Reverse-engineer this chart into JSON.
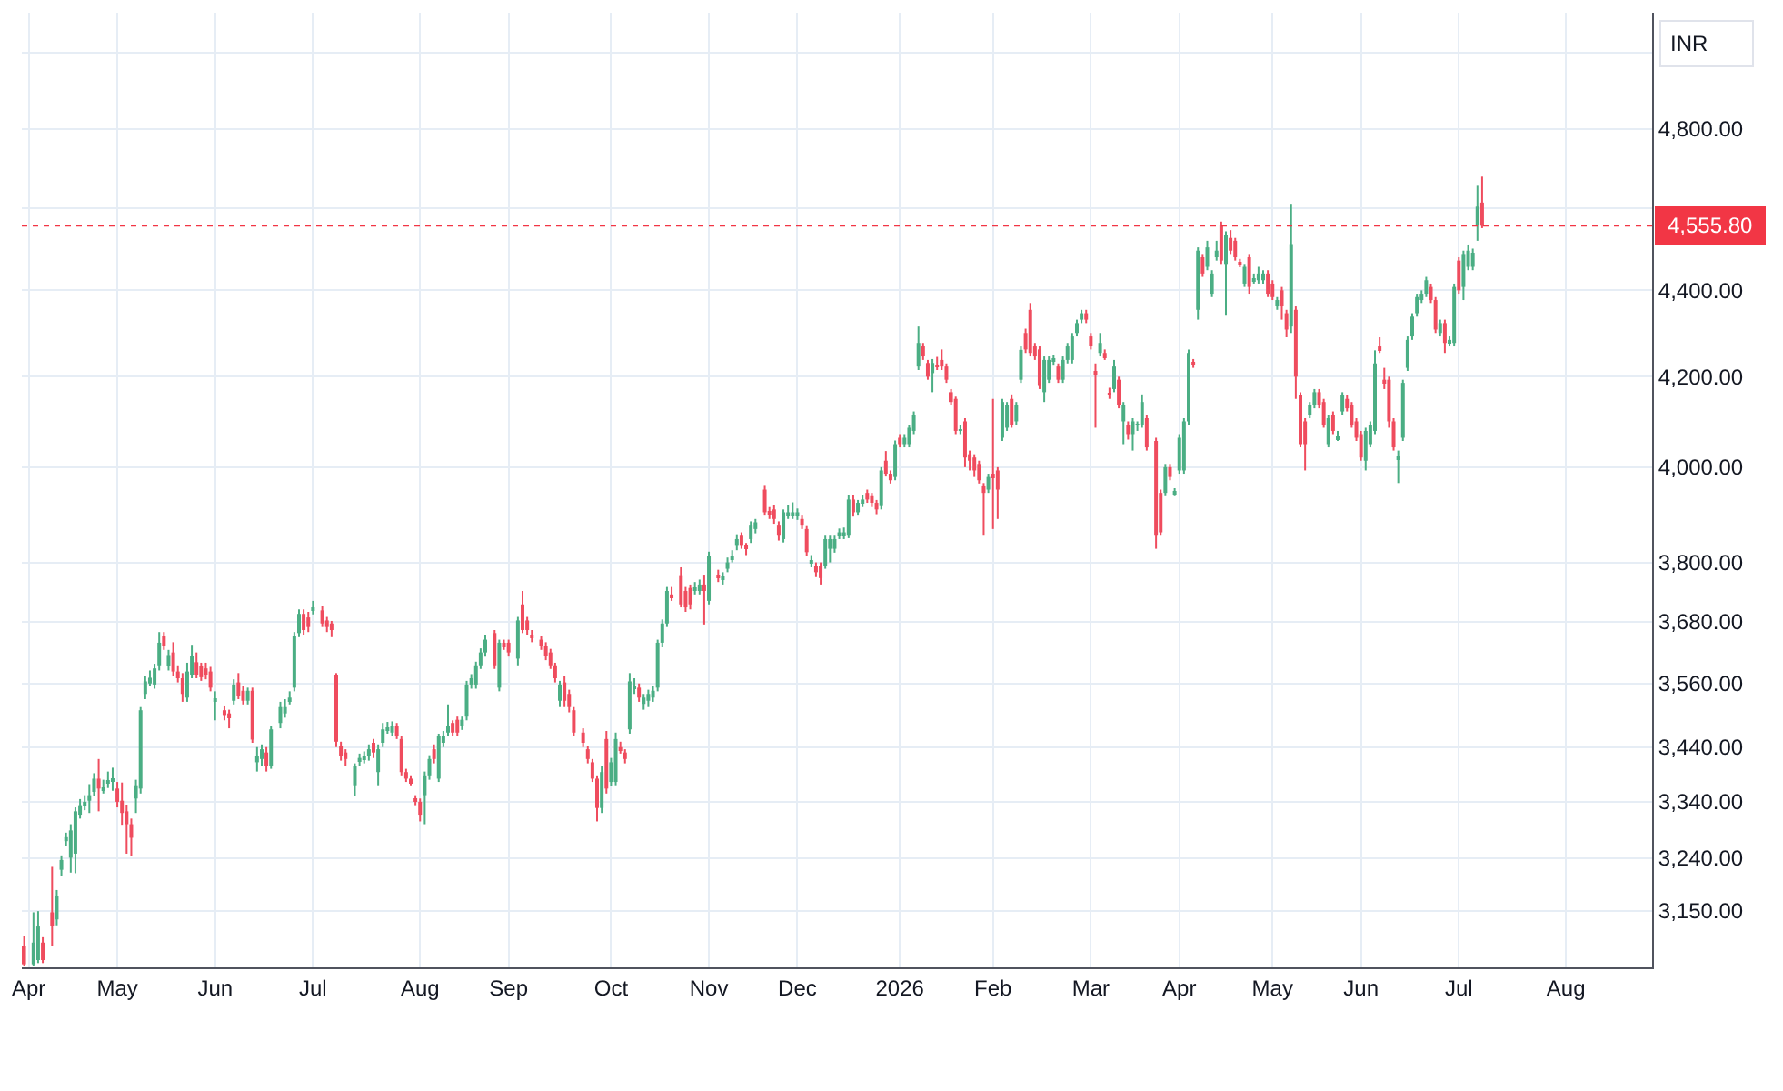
{
  "chart_data": {
    "type": "candlestick",
    "ylabel": "INR",
    "log": "y",
    "grid": true,
    "categories": [
      null,
      "Apr",
      null,
      null,
      null,
      null,
      null,
      null,
      null,
      null,
      null,
      null,
      null,
      null,
      null,
      null,
      null,
      null,
      null,
      null,
      "May",
      null,
      null,
      null,
      null,
      null,
      null,
      null,
      null,
      null,
      null,
      null,
      null,
      null,
      null,
      null,
      null,
      null,
      null,
      null,
      null,
      "Jun",
      null,
      null,
      null,
      null,
      null,
      null,
      null,
      null,
      null,
      null,
      null,
      null,
      null,
      null,
      null,
      null,
      null,
      null,
      null,
      null,
      "Jul",
      null,
      null,
      null,
      null,
      null,
      null,
      null,
      null,
      null,
      null,
      null,
      null,
      null,
      null,
      null,
      null,
      null,
      null,
      null,
      null,
      null,
      null,
      "Aug",
      null,
      null,
      null,
      null,
      null,
      null,
      null,
      null,
      null,
      null,
      null,
      null,
      null,
      null,
      null,
      null,
      null,
      null,
      "Sep",
      null,
      null,
      null,
      null,
      null,
      null,
      null,
      null,
      null,
      null,
      null,
      null,
      null,
      null,
      null,
      null,
      null,
      null,
      null,
      null,
      null,
      "Oct",
      null,
      null,
      null,
      null,
      null,
      null,
      null,
      null,
      null,
      null,
      null,
      null,
      null,
      null,
      null,
      null,
      null,
      null,
      null,
      null,
      "Nov",
      null,
      null,
      null,
      null,
      null,
      null,
      null,
      null,
      null,
      null,
      null,
      null,
      null,
      null,
      null,
      null,
      null,
      null,
      "Dec",
      null,
      null,
      null,
      null,
      null,
      null,
      null,
      null,
      null,
      null,
      null,
      null,
      null,
      null,
      null,
      null,
      null,
      null,
      null,
      null,
      null,
      "2026",
      null,
      null,
      null,
      null,
      null,
      null,
      null,
      null,
      null,
      null,
      null,
      null,
      null,
      null,
      null,
      null,
      null,
      null,
      null,
      "Feb",
      null,
      null,
      null,
      null,
      null,
      null,
      null,
      null,
      null,
      null,
      null,
      null,
      null,
      null,
      null,
      null,
      null,
      null,
      null,
      null,
      "Mar",
      null,
      null,
      null,
      null,
      null,
      null,
      null,
      null,
      null,
      null,
      null,
      null,
      null,
      null,
      null,
      null,
      null,
      null,
      "Apr",
      null,
      null,
      null,
      null,
      null,
      null,
      null,
      null,
      null,
      null,
      null,
      null,
      null,
      null,
      null,
      null,
      null,
      null,
      null,
      "May",
      null,
      null,
      null,
      null,
      null,
      null,
      null,
      null,
      null,
      null,
      null,
      null,
      null,
      null,
      null,
      null,
      null,
      null,
      "Jun",
      null,
      null,
      null,
      null,
      null,
      null,
      null,
      null,
      null,
      null,
      null,
      null,
      null,
      null,
      null,
      null,
      null,
      null,
      null,
      null,
      "Jul",
      null,
      null,
      null,
      null,
      null,
      null,
      null,
      null,
      null,
      null,
      null,
      null,
      null,
      null,
      null,
      null,
      null,
      null,
      null,
      null,
      null,
      null,
      "Aug",
      null,
      null,
      null,
      null,
      null,
      null,
      null,
      null,
      null,
      null,
      null,
      null,
      null,
      null,
      null,
      null,
      null,
      null
    ],
    "ylim": [
      3055,
      5110
    ],
    "yticks": [
      {
        "value": 3150,
        "label": "3,150.00"
      },
      {
        "value": 3240,
        "label": "3,240.00"
      },
      {
        "value": 3340,
        "label": "3,340.00"
      },
      {
        "value": 3440,
        "label": "3,440.00"
      },
      {
        "value": 3560,
        "label": "3,560.00"
      },
      {
        "value": 3680,
        "label": "3,680.00"
      },
      {
        "value": 3800,
        "label": "3,800.00"
      },
      {
        "value": 4000,
        "label": "4,000.00"
      },
      {
        "value": 4200,
        "label": "4,200.00"
      },
      {
        "value": 4400,
        "label": "4,400.00"
      },
      {
        "value": 4600,
        "label": null
      },
      {
        "value": 4800,
        "label": "4,800.00"
      },
      {
        "value": 5000,
        "label": null
      }
    ],
    "ref_lines": [
      {
        "axis": "y",
        "value": 4555.8,
        "label": "4,555.80",
        "color": "#f23645",
        "line_style": "dotted"
      }
    ],
    "ohlc": [
      [
        3090,
        3107,
        3057,
        3060
      ],
      null,
      [
        3060,
        3147,
        3057,
        3096
      ],
      [
        3067,
        3149,
        3062,
        3123
      ],
      [
        3096,
        3105,
        3062,
        3067
      ],
      null,
      [
        3147,
        3225,
        3090,
        3124
      ],
      [
        3135,
        3185,
        3125,
        3175
      ],
      [
        3220,
        3245,
        3210,
        3237
      ],
      [
        3270,
        3285,
        3262,
        3277
      ],
      [
        3241,
        3300,
        3215,
        3289
      ],
      [
        3248,
        3330,
        3214,
        3323
      ],
      [
        3317,
        3345,
        3310,
        3334
      ],
      [
        3334,
        3352,
        3325,
        3340
      ],
      [
        3342,
        3372,
        3320,
        3352
      ],
      [
        3358,
        3392,
        3350,
        3382
      ],
      [
        3382,
        3418,
        3323,
        3364
      ],
      [
        3362,
        3380,
        3355,
        3366
      ],
      [
        3374,
        3395,
        3365,
        3378
      ],
      [
        3378,
        3402,
        3360,
        3382
      ],
      [
        3364,
        3376,
        3330,
        3340
      ],
      [
        3342,
        3375,
        3299,
        3320
      ],
      [
        3323,
        3335,
        3248,
        3300
      ],
      [
        3300,
        3310,
        3244,
        3276
      ],
      [
        3346,
        3380,
        3320,
        3370
      ],
      [
        3364,
        3515,
        3355,
        3509
      ],
      [
        3540,
        3575,
        3530,
        3564
      ],
      [
        3560,
        3585,
        3555,
        3571
      ],
      [
        3558,
        3598,
        3550,
        3589
      ],
      [
        3595,
        3660,
        3585,
        3639
      ],
      [
        3652,
        3660,
        3625,
        3633
      ],
      [
        3593,
        3625,
        3585,
        3615
      ],
      [
        3620,
        3640,
        3575,
        3583
      ],
      [
        3583,
        3595,
        3562,
        3570
      ],
      [
        3570,
        3580,
        3525,
        3540
      ],
      [
        3533,
        3600,
        3525,
        3583
      ],
      [
        3577,
        3635,
        3570,
        3614
      ],
      [
        3601,
        3620,
        3570,
        3577
      ],
      [
        3593,
        3600,
        3565,
        3572
      ],
      [
        3589,
        3600,
        3568,
        3577
      ],
      [
        3583,
        3592,
        3545,
        3552
      ],
      [
        3525,
        3545,
        3490,
        3529
      ],
      null,
      [
        3509,
        3518,
        3490,
        3500
      ],
      [
        3503,
        3510,
        3475,
        3497
      ],
      [
        3527,
        3568,
        3520,
        3558
      ],
      [
        3562,
        3580,
        3530,
        3537
      ],
      [
        3546,
        3555,
        3520,
        3527
      ],
      [
        3527,
        3552,
        3520,
        3546
      ],
      [
        3546,
        3552,
        3448,
        3454
      ],
      [
        3412,
        3440,
        3395,
        3424
      ],
      [
        3418,
        3445,
        3405,
        3436
      ],
      [
        3430,
        3440,
        3395,
        3406
      ],
      [
        3406,
        3480,
        3400,
        3473
      ],
      null,
      [
        3485,
        3525,
        3475,
        3515
      ],
      [
        3503,
        3530,
        3495,
        3515
      ],
      [
        3527,
        3545,
        3520,
        3533
      ],
      [
        3552,
        3660,
        3545,
        3652
      ],
      [
        3658,
        3705,
        3650,
        3696
      ],
      [
        3696,
        3705,
        3655,
        3664
      ],
      [
        3689,
        3700,
        3660,
        3670
      ],
      [
        3703,
        3722,
        3695,
        3709
      ],
      null,
      [
        3703,
        3712,
        3670,
        3677
      ],
      [
        3683,
        3690,
        3660,
        3670
      ],
      [
        3677,
        3682,
        3650,
        3664
      ],
      [
        3577,
        3580,
        3440,
        3450
      ],
      [
        3442,
        3450,
        3415,
        3424
      ],
      [
        3430,
        3436,
        3405,
        3418
      ],
      null,
      [
        3370,
        3410,
        3350,
        3406
      ],
      [
        3416,
        3428,
        3405,
        3420
      ],
      [
        3418,
        3432,
        3410,
        3424
      ],
      [
        3424,
        3445,
        3415,
        3436
      ],
      [
        3448,
        3455,
        3420,
        3430
      ],
      [
        3394,
        3445,
        3370,
        3436
      ],
      [
        3448,
        3485,
        3440,
        3473
      ],
      [
        3473,
        3487,
        3465,
        3476
      ],
      [
        3467,
        3488,
        3460,
        3479
      ],
      [
        3479,
        3485,
        3455,
        3461
      ],
      [
        3455,
        3460,
        3388,
        3394
      ],
      [
        3394,
        3400,
        3376,
        3382
      ],
      [
        3382,
        3388,
        3370,
        3376
      ],
      [
        3346,
        3352,
        3334,
        3340
      ],
      [
        3340,
        3346,
        3305,
        3317
      ],
      [
        3352,
        3395,
        3300,
        3388
      ],
      [
        3388,
        3425,
        3380,
        3418
      ],
      [
        3436,
        3445,
        3410,
        3418
      ],
      [
        3382,
        3465,
        3376,
        3461
      ],
      [
        3448,
        3470,
        3440,
        3461
      ],
      [
        3467,
        3520,
        3460,
        3479
      ],
      [
        3485,
        3490,
        3460,
        3467
      ],
      [
        3491,
        3497,
        3460,
        3467
      ],
      [
        3479,
        3497,
        3472,
        3491
      ],
      [
        3497,
        3565,
        3490,
        3558
      ],
      [
        3558,
        3578,
        3550,
        3570
      ],
      [
        3558,
        3602,
        3550,
        3595
      ],
      [
        3595,
        3628,
        3588,
        3620
      ],
      [
        3620,
        3655,
        3612,
        3645
      ],
      null,
      [
        3658,
        3664,
        3588,
        3595
      ],
      [
        3552,
        3645,
        3545,
        3639
      ],
      [
        3639,
        3645,
        3625,
        3633
      ],
      [
        3639,
        3645,
        3612,
        3620
      ],
      null,
      [
        3608,
        3690,
        3595,
        3683
      ],
      [
        3715,
        3742,
        3658,
        3664
      ],
      [
        3683,
        3690,
        3655,
        3664
      ],
      [
        3652,
        3664,
        3640,
        3649
      ],
      null,
      [
        3645,
        3652,
        3625,
        3633
      ],
      [
        3633,
        3640,
        3605,
        3614
      ],
      [
        3620,
        3627,
        3588,
        3595
      ],
      [
        3595,
        3600,
        3562,
        3570
      ],
      [
        3527,
        3565,
        3515,
        3558
      ],
      [
        3562,
        3575,
        3515,
        3527
      ],
      [
        3540,
        3548,
        3505,
        3515
      ],
      [
        3509,
        3515,
        3460,
        3467
      ],
      null,
      [
        3467,
        3475,
        3440,
        3448
      ],
      [
        3436,
        3442,
        3410,
        3418
      ],
      [
        3412,
        3418,
        3376,
        3382
      ],
      [
        3382,
        3388,
        3305,
        3329
      ],
      [
        3329,
        3405,
        3320,
        3394
      ],
      [
        3455,
        3470,
        3355,
        3364
      ],
      [
        3376,
        3420,
        3368,
        3412
      ],
      [
        3376,
        3467,
        3370,
        3455
      ],
      [
        3440,
        3450,
        3428,
        3436
      ],
      [
        3430,
        3436,
        3410,
        3418
      ],
      [
        3473,
        3580,
        3465,
        3564
      ],
      [
        3552,
        3570,
        3540,
        3555
      ],
      [
        3552,
        3560,
        3525,
        3533
      ],
      [
        3521,
        3540,
        3510,
        3533
      ],
      [
        3527,
        3548,
        3515,
        3540
      ],
      [
        3533,
        3555,
        3525,
        3546
      ],
      [
        3552,
        3645,
        3545,
        3639
      ],
      [
        3639,
        3685,
        3630,
        3677
      ],
      [
        3677,
        3750,
        3670,
        3742
      ],
      [
        3735,
        3750,
        3722,
        3729
      ],
      null,
      [
        3774,
        3790,
        3709,
        3715
      ],
      [
        3742,
        3750,
        3700,
        3709
      ],
      [
        3748,
        3755,
        3705,
        3715
      ],
      [
        3742,
        3760,
        3735,
        3748
      ],
      [
        3742,
        3765,
        3735,
        3755
      ],
      [
        3755,
        3775,
        3675,
        3742
      ],
      [
        3722,
        3822,
        3715,
        3814
      ],
      null,
      [
        3774,
        3785,
        3760,
        3768
      ],
      [
        3766,
        3780,
        3755,
        3769
      ],
      [
        3787,
        3810,
        3780,
        3800
      ],
      [
        3807,
        3825,
        3800,
        3814
      ],
      [
        3834,
        3858,
        3825,
        3848
      ],
      [
        3855,
        3862,
        3828,
        3834
      ],
      [
        3834,
        3840,
        3815,
        3828
      ],
      [
        3848,
        3885,
        3840,
        3876
      ],
      [
        3869,
        3890,
        3860,
        3883
      ],
      null,
      [
        3952,
        3960,
        3897,
        3904
      ],
      [
        3904,
        3915,
        3890,
        3901
      ],
      [
        3910,
        3920,
        3880,
        3890
      ],
      [
        3876,
        3885,
        3845,
        3855
      ],
      [
        3848,
        3910,
        3841,
        3904
      ],
      [
        3897,
        3920,
        3890,
        3904
      ],
      [
        3897,
        3925,
        3890,
        3904
      ],
      [
        3897,
        3912,
        3888,
        3904
      ],
      [
        3890,
        3897,
        3869,
        3876
      ],
      [
        3869,
        3875,
        3814,
        3821
      ],
      [
        3798,
        3815,
        3790,
        3802
      ],
      [
        3793,
        3800,
        3770,
        3780
      ],
      [
        3793,
        3800,
        3755,
        3768
      ],
      [
        3793,
        3855,
        3787,
        3848
      ],
      [
        3828,
        3855,
        3800,
        3848
      ],
      [
        3828,
        3855,
        3820,
        3848
      ],
      [
        3855,
        3870,
        3848,
        3862
      ],
      [
        3855,
        3872,
        3848,
        3862
      ],
      [
        3855,
        3940,
        3850,
        3931
      ],
      [
        3931,
        3940,
        3895,
        3904
      ],
      [
        3904,
        3930,
        3897,
        3924
      ],
      [
        3924,
        3940,
        3915,
        3931
      ],
      [
        3945,
        3952,
        3924,
        3931
      ],
      [
        3938,
        3945,
        3915,
        3924
      ],
      [
        3924,
        3930,
        3900,
        3910
      ],
      [
        3917,
        4000,
        3910,
        3993
      ],
      [
        4014,
        4035,
        3980,
        3986
      ],
      [
        3986,
        3993,
        3965,
        3972
      ],
      [
        3979,
        4058,
        3972,
        4050
      ],
      [
        4064,
        4072,
        4043,
        4050
      ],
      [
        4050,
        4072,
        4043,
        4064
      ],
      [
        4050,
        4093,
        4043,
        4086
      ],
      [
        4079,
        4122,
        4072,
        4115
      ],
      [
        4223,
        4315,
        4215,
        4277
      ],
      [
        4269,
        4277,
        4238,
        4246
      ],
      [
        4231,
        4238,
        4193,
        4200
      ],
      [
        4208,
        4240,
        4165,
        4231
      ],
      [
        4225,
        4245,
        4215,
        4223
      ],
      [
        4238,
        4262,
        4215,
        4223
      ],
      [
        4223,
        4230,
        4186,
        4193
      ],
      [
        4165,
        4172,
        4136,
        4143
      ],
      [
        4150,
        4155,
        4072,
        4079
      ],
      [
        4079,
        4093,
        4072,
        4081
      ],
      [
        4100,
        4107,
        4000,
        4021
      ],
      [
        4028,
        4036,
        3993,
        4014
      ],
      [
        4021,
        4028,
        3979,
        3993
      ],
      [
        4007,
        4014,
        3965,
        3972
      ],
      [
        3959,
        3966,
        3855,
        3945
      ],
      [
        3952,
        3986,
        3945,
        3979
      ],
      [
        3986,
        4150,
        3869,
        3979
      ],
      [
        3993,
        4000,
        3890,
        3952
      ],
      [
        4064,
        4150,
        4057,
        4143
      ],
      [
        4086,
        4143,
        4079,
        4136
      ],
      [
        4150,
        4160,
        4086,
        4093
      ],
      [
        4100,
        4143,
        4093,
        4136
      ],
      [
        4193,
        4269,
        4186,
        4261
      ],
      [
        4300,
        4310,
        4254,
        4262
      ],
      [
        4354,
        4370,
        4246,
        4254
      ],
      [
        4269,
        4277,
        4238,
        4246
      ],
      [
        4262,
        4269,
        4172,
        4179
      ],
      [
        4165,
        4246,
        4143,
        4238
      ],
      [
        4193,
        4246,
        4186,
        4238
      ],
      [
        4236,
        4250,
        4225,
        4238
      ],
      [
        4223,
        4230,
        4186,
        4193
      ],
      [
        4193,
        4246,
        4186,
        4238
      ],
      [
        4238,
        4277,
        4230,
        4269
      ],
      [
        4238,
        4300,
        4230,
        4292
      ],
      [
        4300,
        4331,
        4292,
        4323
      ],
      [
        4331,
        4354,
        4323,
        4346
      ],
      [
        4346,
        4354,
        4323,
        4331
      ],
      [
        4292,
        4300,
        4262,
        4269
      ],
      [
        4210,
        4230,
        4086,
        4206
      ],
      [
        4254,
        4300,
        4246,
        4277
      ],
      [
        4254,
        4262,
        4238,
        4246
      ],
      [
        4163,
        4175,
        4150,
        4160
      ],
      [
        4172,
        4238,
        4165,
        4223
      ],
      [
        4193,
        4200,
        4129,
        4136
      ],
      [
        4100,
        4143,
        4050,
        4136
      ],
      [
        4093,
        4100,
        4060,
        4072
      ],
      [
        4072,
        4107,
        4036,
        4100
      ],
      [
        4091,
        4100,
        4079,
        4093
      ],
      [
        4093,
        4160,
        4086,
        4143
      ],
      [
        4107,
        4115,
        4036,
        4043
      ],
      null,
      [
        4057,
        4064,
        3828,
        3855
      ],
      [
        3945,
        3952,
        3855,
        3862
      ],
      [
        3945,
        4007,
        3938,
        4000
      ],
      [
        4000,
        4007,
        3972,
        3979
      ],
      [
        3945,
        3955,
        3938,
        3948
      ],
      [
        3993,
        4072,
        3986,
        4064
      ],
      [
        3993,
        4107,
        3986,
        4100
      ],
      [
        4100,
        4262,
        4093,
        4254
      ],
      [
        4232,
        4240,
        4220,
        4228
      ],
      [
        4354,
        4503,
        4331,
        4495
      ],
      [
        4479,
        4487,
        4432,
        4440
      ],
      [
        4456,
        4519,
        4448,
        4503
      ],
      [
        4392,
        4448,
        4384,
        4440
      ],
      [
        4479,
        4519,
        4471,
        4495
      ],
      [
        4558,
        4566,
        4463,
        4471
      ],
      [
        4463,
        4542,
        4340,
        4534
      ],
      [
        4526,
        4545,
        4487,
        4495
      ],
      [
        4519,
        4526,
        4471,
        4479
      ],
      [
        4465,
        4475,
        4455,
        4462
      ],
      [
        4416,
        4463,
        4408,
        4456
      ],
      [
        4479,
        4487,
        4392,
        4408
      ],
      [
        4422,
        4440,
        4416,
        4425
      ],
      [
        4424,
        4456,
        4416,
        4440
      ],
      [
        4424,
        4448,
        4416,
        4440
      ],
      [
        4440,
        4448,
        4384,
        4392
      ],
      [
        4416,
        4424,
        4377,
        4384
      ],
      [
        4362,
        4384,
        4354,
        4377
      ],
      [
        4400,
        4408,
        4331,
        4362
      ],
      [
        4346,
        4354,
        4290,
        4308
      ],
      [
        4315,
        4610,
        4300,
        4511
      ],
      [
        4354,
        4362,
        4150,
        4200
      ],
      [
        4158,
        4165,
        4043,
        4050
      ],
      [
        4100,
        4107,
        3993,
        4050
      ],
      [
        4115,
        4143,
        4107,
        4136
      ],
      [
        4136,
        4172,
        4129,
        4165
      ],
      [
        4165,
        4172,
        4129,
        4136
      ],
      [
        4143,
        4150,
        4086,
        4093
      ],
      [
        4050,
        4115,
        4043,
        4107
      ],
      [
        4115,
        4122,
        4072,
        4079
      ],
      [
        4062,
        4079,
        4057,
        4066
      ],
      [
        4122,
        4165,
        4115,
        4158
      ],
      [
        4150,
        4158,
        4122,
        4129
      ],
      [
        4136,
        4143,
        4086,
        4093
      ],
      [
        4100,
        4107,
        4057,
        4064
      ],
      [
        4072,
        4079,
        4014,
        4021
      ],
      [
        4014,
        4086,
        3993,
        4079
      ],
      [
        4050,
        4100,
        4043,
        4093
      ],
      [
        4079,
        4260,
        4072,
        4230
      ],
      [
        4269,
        4290,
        4254,
        4262
      ],
      [
        4193,
        4220,
        4172,
        4186
      ],
      [
        4193,
        4200,
        4086,
        4100
      ],
      [
        4100,
        4107,
        4036,
        4043
      ],
      [
        4019,
        4036,
        3966,
        4022
      ],
      [
        4064,
        4193,
        4057,
        4186
      ],
      [
        4220,
        4292,
        4213,
        4284
      ],
      [
        4292,
        4346,
        4284,
        4338
      ],
      [
        4346,
        4392,
        4338,
        4384
      ],
      [
        4377,
        4400,
        4370,
        4392
      ],
      [
        4392,
        4432,
        4384,
        4424
      ],
      [
        4408,
        4416,
        4370,
        4377
      ],
      [
        4377,
        4384,
        4300,
        4308
      ],
      [
        4300,
        4331,
        4292,
        4323
      ],
      [
        4323,
        4331,
        4254,
        4277
      ],
      [
        4277,
        4292,
        4269,
        4284
      ],
      [
        4277,
        4416,
        4269,
        4408
      ],
      [
        4471,
        4479,
        4392,
        4400
      ],
      [
        4408,
        4495,
        4377,
        4487
      ],
      [
        4456,
        4510,
        4448,
        4495
      ],
      [
        4456,
        4500,
        4448,
        4490
      ],
      [
        4558,
        4655,
        4519,
        4603
      ],
      [
        4613,
        4678,
        4550,
        4555.8
      ],
      null,
      null,
      null,
      null,
      null,
      null,
      null,
      null,
      null,
      null,
      null,
      null,
      null,
      null,
      null,
      null,
      null,
      null,
      null,
      null,
      null,
      null,
      null,
      null,
      null,
      null,
      null,
      null,
      null,
      null,
      null,
      null,
      null,
      null,
      null,
      null
    ],
    "colors": [
      "#ef4c5e",
      null,
      "#4bae84",
      "#4bae84",
      "#ef4c5e",
      null,
      "#ef4c5e",
      "#4bae84",
      "#4bae84",
      "#4bae84",
      "#4bae84",
      "#4bae84",
      "#4bae84",
      "#4bae84",
      "#4bae84",
      "#4bae84",
      "#ef4c5e",
      "#4bae84",
      "#4bae84",
      "#4bae84",
      "#ef4c5e",
      "#ef4c5e",
      "#ef4c5e",
      "#ef4c5e",
      "#4bae84",
      "#4bae84",
      "#4bae84",
      "#4bae84",
      "#4bae84",
      "#4bae84",
      "#ef4c5e",
      "#4bae84",
      "#ef4c5e",
      "#ef4c5e",
      "#ef4c5e",
      "#4bae84",
      "#4bae84",
      "#ef4c5e",
      "#ef4c5e",
      "#ef4c5e",
      "#ef4c5e",
      "#4bae84",
      null,
      "#ef4c5e",
      "#ef4c5e",
      "#4bae84",
      "#ef4c5e",
      "#ef4c5e",
      "#4bae84",
      "#ef4c5e",
      "#4bae84",
      "#4bae84",
      "#ef4c5e",
      "#4bae84",
      null,
      "#4bae84",
      "#4bae84",
      "#4bae84",
      "#4bae84",
      "#4bae84",
      "#ef4c5e",
      "#ef4c5e",
      "#4bae84",
      null,
      "#ef4c5e",
      "#ef4c5e",
      "#ef4c5e",
      "#ef4c5e",
      "#ef4c5e",
      "#ef4c5e",
      null,
      "#4bae84",
      "#4bae84",
      "#4bae84",
      "#4bae84",
      "#ef4c5e",
      "#4bae84",
      "#4bae84",
      "#4bae84",
      "#4bae84",
      "#ef4c5e",
      "#ef4c5e",
      "#ef4c5e",
      "#ef4c5e",
      "#ef4c5e",
      "#ef4c5e",
      "#4bae84",
      "#4bae84",
      "#ef4c5e",
      "#4bae84",
      "#4bae84",
      "#4bae84",
      "#ef4c5e",
      "#ef4c5e",
      "#4bae84",
      "#4bae84",
      "#4bae84",
      "#4bae84",
      "#4bae84",
      "#4bae84",
      null,
      "#ef4c5e",
      "#4bae84",
      "#ef4c5e",
      "#ef4c5e",
      null,
      "#4bae84",
      "#ef4c5e",
      "#ef4c5e",
      "#ef4c5e",
      null,
      "#ef4c5e",
      "#ef4c5e",
      "#ef4c5e",
      "#ef4c5e",
      "#4bae84",
      "#ef4c5e",
      "#ef4c5e",
      "#ef4c5e",
      null,
      "#ef4c5e",
      "#ef4c5e",
      "#ef4c5e",
      "#ef4c5e",
      "#4bae84",
      "#ef4c5e",
      "#4bae84",
      "#4bae84",
      "#ef4c5e",
      "#ef4c5e",
      "#4bae84",
      "#4bae84",
      "#ef4c5e",
      "#4bae84",
      "#4bae84",
      "#4bae84",
      "#4bae84",
      "#4bae84",
      "#4bae84",
      "#ef4c5e",
      null,
      "#ef4c5e",
      "#ef4c5e",
      "#ef4c5e",
      "#4bae84",
      "#4bae84",
      "#ef4c5e",
      "#4bae84",
      null,
      "#ef4c5e",
      "#4bae84",
      "#4bae84",
      "#4bae84",
      "#4bae84",
      "#ef4c5e",
      "#ef4c5e",
      "#4bae84",
      "#4bae84",
      null,
      "#ef4c5e",
      "#ef4c5e",
      "#ef4c5e",
      "#ef4c5e",
      "#4bae84",
      "#4bae84",
      "#4bae84",
      "#4bae84",
      "#ef4c5e",
      "#ef4c5e",
      "#4bae84",
      "#ef4c5e",
      "#ef4c5e",
      "#4bae84",
      "#4bae84",
      "#4bae84",
      "#4bae84",
      "#4bae84",
      "#4bae84",
      "#ef4c5e",
      "#4bae84",
      "#4bae84",
      "#ef4c5e",
      "#ef4c5e",
      "#ef4c5e",
      "#4bae84",
      "#ef4c5e",
      "#ef4c5e",
      "#4bae84",
      "#ef4c5e",
      "#4bae84",
      "#4bae84",
      "#4bae84",
      "#4bae84",
      "#ef4c5e",
      "#ef4c5e",
      "#4bae84",
      "#ef4c5e",
      "#ef4c5e",
      "#ef4c5e",
      "#ef4c5e",
      "#ef4c5e",
      "#4bae84",
      "#ef4c5e",
      "#ef4c5e",
      "#ef4c5e",
      "#ef4c5e",
      "#ef4c5e",
      "#4bae84",
      "#ef4c5e",
      "#ef4c5e",
      "#4bae84",
      "#4bae84",
      "#ef4c5e",
      "#4bae84",
      "#4bae84",
      "#ef4c5e",
      "#ef4c5e",
      "#ef4c5e",
      "#ef4c5e",
      "#4bae84",
      "#4bae84",
      "#4bae84",
      "#ef4c5e",
      "#4bae84",
      "#4bae84",
      "#4bae84",
      "#4bae84",
      "#4bae84",
      "#ef4c5e",
      "#ef4c5e",
      "#ef4c5e",
      "#4bae84",
      "#ef4c5e",
      "#ef4c5e",
      "#4bae84",
      "#ef4c5e",
      "#4bae84",
      "#ef4c5e",
      "#4bae84",
      "#4bae84",
      "#4bae84",
      "#ef4c5e",
      null,
      "#ef4c5e",
      "#ef4c5e",
      "#4bae84",
      "#ef4c5e",
      "#4bae84",
      "#4bae84",
      "#4bae84",
      "#4bae84",
      "#ef4c5e",
      "#4bae84",
      "#ef4c5e",
      "#4bae84",
      "#4bae84",
      "#4bae84",
      "#ef4c5e",
      "#4bae84",
      "#ef4c5e",
      "#ef4c5e",
      "#ef4c5e",
      "#4bae84",
      "#ef4c5e",
      "#4bae84",
      "#4bae84",
      "#4bae84",
      "#ef4c5e",
      "#ef4c5e",
      "#4bae84",
      "#ef4c5e",
      "#ef4c5e",
      "#4bae84",
      "#ef4c5e",
      "#ef4c5e",
      "#ef4c5e",
      "#4bae84",
      "#4bae84",
      "#ef4c5e",
      "#ef4c5e",
      "#4bae84",
      "#ef4c5e",
      "#4bae84",
      "#4bae84",
      "#ef4c5e",
      "#ef4c5e",
      "#ef4c5e",
      "#ef4c5e",
      "#4bae84",
      "#4bae84",
      "#4bae84",
      "#ef4c5e",
      "#ef4c5e",
      "#ef4c5e",
      "#ef4c5e",
      "#4bae84",
      "#4bae84",
      "#4bae84",
      "#4bae84",
      "#4bae84",
      "#4bae84",
      "#4bae84",
      "#ef4c5e",
      "#ef4c5e",
      "#4bae84",
      "#ef4c5e",
      "#4bae84",
      "#4bae84",
      "#ef4c5e",
      "#4bae84",
      "#4bae84",
      "#4bae84",
      "#4bae84",
      "#ef4c5e",
      null,
      null,
      null,
      null,
      null,
      null,
      null,
      null,
      null,
      null,
      null,
      null,
      null,
      null,
      null,
      null,
      null,
      null,
      null,
      null,
      null,
      null,
      null,
      null,
      null,
      null,
      null,
      null,
      null,
      null,
      null,
      null,
      null,
      null,
      null,
      null
    ]
  }
}
